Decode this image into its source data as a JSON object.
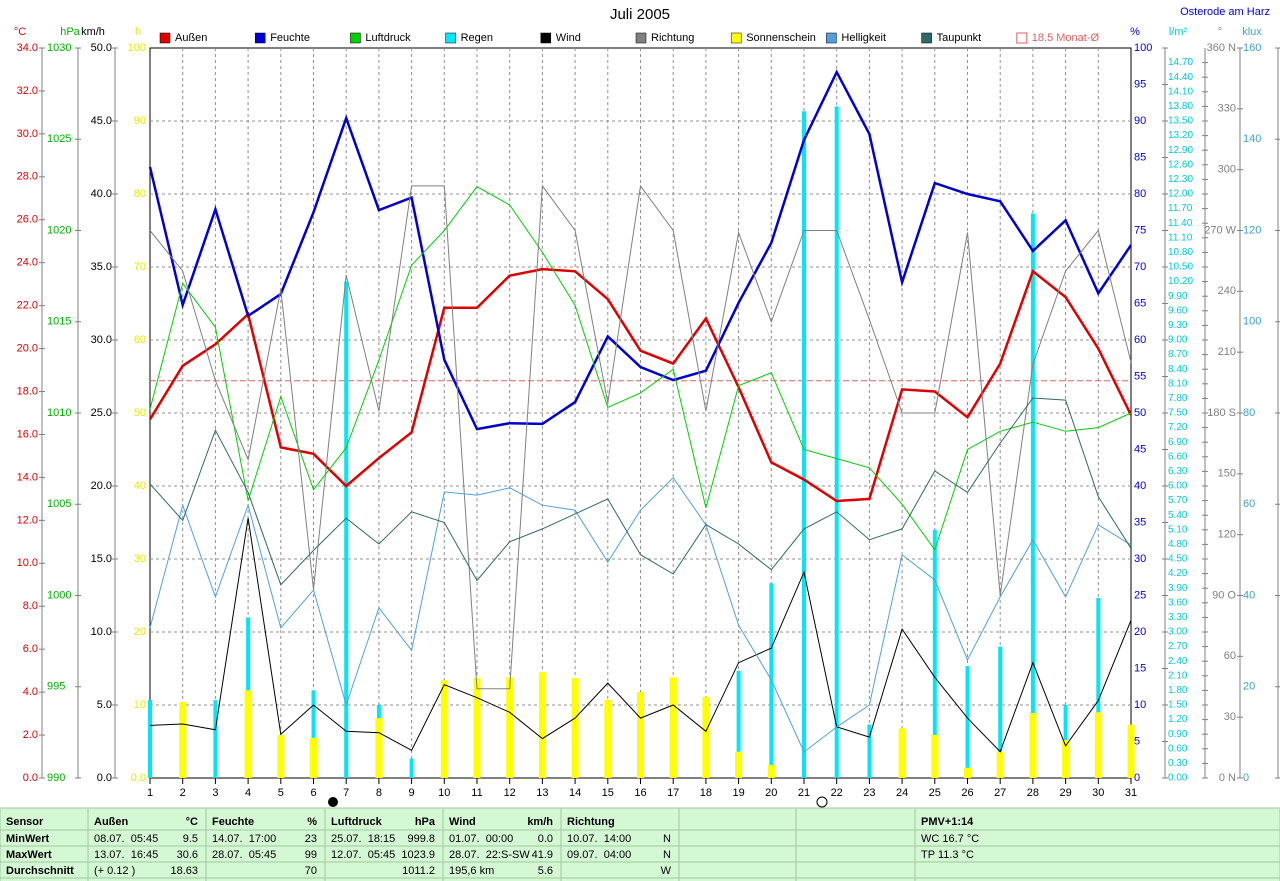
{
  "header": {
    "title": "Juli 2005",
    "location": "Osterode am Harz"
  },
  "chart_data": {
    "type": "line",
    "categories": [
      "1",
      "2",
      "3",
      "4",
      "5",
      "6",
      "7",
      "8",
      "9",
      "10",
      "11",
      "12",
      "13",
      "14",
      "15",
      "16",
      "17",
      "18",
      "19",
      "20",
      "21",
      "22",
      "23",
      "24",
      "25",
      "26",
      "27",
      "28",
      "29",
      "30",
      "31"
    ],
    "axes": [
      {
        "unit": "°C",
        "color": "#e00000",
        "lim": [
          0,
          34
        ],
        "ticks": [
          {
            "value": 0,
            "label": "0.0"
          },
          {
            "value": 2,
            "label": "2.0"
          },
          {
            "value": 4,
            "label": "4.0"
          },
          {
            "value": 6,
            "label": "6.0"
          },
          {
            "value": 8,
            "label": "8.0"
          },
          {
            "value": 10,
            "label": "10.0"
          },
          {
            "value": 12,
            "label": "12.0"
          },
          {
            "value": 14,
            "label": "14.0"
          },
          {
            "value": 16,
            "label": "16.0"
          },
          {
            "value": 18,
            "label": "18.0"
          },
          {
            "value": 20,
            "label": "20.0"
          },
          {
            "value": 22,
            "label": "22.0"
          },
          {
            "value": 24,
            "label": "24.0"
          },
          {
            "value": 26,
            "label": "26.0"
          },
          {
            "value": 28,
            "label": "28.0"
          },
          {
            "value": 30,
            "label": "30.0"
          },
          {
            "value": 32,
            "label": "32.0"
          },
          {
            "value": 34,
            "label": "34.0"
          }
        ]
      },
      {
        "unit": "hPa",
        "color": "#00b000",
        "lim": [
          990,
          1030
        ],
        "ticks": [
          990,
          995,
          1000,
          1005,
          1010,
          1015,
          1020,
          1025,
          1030
        ]
      },
      {
        "unit": "km/h",
        "color": "#000000",
        "lim": [
          0,
          50
        ],
        "grid": true,
        "ticks": [
          {
            "value": 0,
            "label": "0.0"
          },
          {
            "value": 5,
            "label": "5.0"
          },
          {
            "value": 10,
            "label": "10.0"
          },
          {
            "value": 15,
            "label": "15.0"
          },
          {
            "value": 20,
            "label": "20.0"
          },
          {
            "value": 25,
            "label": "25.0"
          },
          {
            "value": 30,
            "label": "30.0"
          },
          {
            "value": 35,
            "label": "35.0"
          },
          {
            "value": 40,
            "label": "40.0"
          },
          {
            "value": 45,
            "label": "45.0"
          },
          {
            "value": 50,
            "label": "50.0"
          }
        ]
      },
      {
        "unit": "h",
        "color": "#e8e800",
        "lim": [
          0,
          100
        ],
        "ticks": [
          {
            "value": 0,
            "label": "0.0"
          },
          10,
          20,
          30,
          40,
          50,
          60,
          70,
          80,
          90,
          100
        ]
      },
      {
        "unit": "%",
        "color": "#0000e0",
        "lim": [
          0,
          100
        ],
        "ticks": [
          0,
          5,
          10,
          15,
          20,
          25,
          30,
          35,
          40,
          45,
          50,
          55,
          60,
          65,
          70,
          75,
          80,
          85,
          90,
          95,
          100
        ]
      },
      {
        "unit": "l/m²",
        "color": "#00c8d8",
        "lim": [
          0,
          15
        ],
        "ticks": [
          {
            "value": 0,
            "label": "0.00"
          },
          {
            "value": 0.3,
            "label": "0.30"
          },
          {
            "value": 0.6,
            "label": "0.60"
          },
          {
            "value": 0.9,
            "label": "0.90"
          },
          {
            "value": 1.2,
            "label": "1.20"
          },
          {
            "value": 1.5,
            "label": "1.50"
          },
          {
            "value": 1.8,
            "label": "1.80"
          },
          {
            "value": 2.1,
            "label": "2.10"
          },
          {
            "value": 2.4,
            "label": "2.40"
          },
          {
            "value": 2.7,
            "label": "2.70"
          },
          {
            "value": 3,
            "label": "3.00"
          },
          {
            "value": 3.3,
            "label": "3.30"
          },
          {
            "value": 3.6,
            "label": "3.60"
          },
          {
            "value": 3.9,
            "label": "3.90"
          },
          {
            "value": 4.2,
            "label": "4.20"
          },
          {
            "value": 4.5,
            "label": "4.50"
          },
          {
            "value": 4.8,
            "label": "4.80"
          },
          {
            "value": 5.1,
            "label": "5.10"
          },
          {
            "value": 5.4,
            "label": "5.40"
          },
          {
            "value": 5.7,
            "label": "5.70"
          },
          {
            "value": 6,
            "label": "6.00"
          },
          {
            "value": 6.3,
            "label": "6.30"
          },
          {
            "value": 6.6,
            "label": "6.60"
          },
          {
            "value": 6.9,
            "label": "6.90"
          },
          {
            "value": 7.2,
            "label": "7.20"
          },
          {
            "value": 7.5,
            "label": "7.50"
          },
          {
            "value": 7.8,
            "label": "7.80"
          },
          {
            "value": 8.1,
            "label": "8.10"
          },
          {
            "value": 8.4,
            "label": "8.40"
          },
          {
            "value": 8.7,
            "label": "8.70"
          },
          {
            "value": 9,
            "label": "9.00"
          },
          {
            "value": 9.3,
            "label": "9.30"
          },
          {
            "value": 9.6,
            "label": "9.60"
          },
          {
            "value": 9.9,
            "label": "9.90"
          },
          {
            "value": 10.2,
            "label": "10.20"
          },
          {
            "value": 10.5,
            "label": "10.50"
          },
          {
            "value": 10.8,
            "label": "10.80"
          },
          {
            "value": 11.1,
            "label": "11.10"
          },
          {
            "value": 11.4,
            "label": "11.40"
          },
          {
            "value": 11.7,
            "label": "11.70"
          },
          {
            "value": 12,
            "label": "12.00"
          },
          {
            "value": 12.3,
            "label": "12.30"
          },
          {
            "value": 12.6,
            "label": "12.60"
          },
          {
            "value": 12.9,
            "label": "12.90"
          },
          {
            "value": 13.2,
            "label": "13.20"
          },
          {
            "value": 13.5,
            "label": "13.50"
          },
          {
            "value": 13.8,
            "label": "13.80"
          },
          {
            "value": 14.1,
            "label": "14.10"
          },
          {
            "value": 14.4,
            "label": "14.40"
          },
          {
            "value": 14.7,
            "label": "14.70"
          }
        ]
      },
      {
        "unit": "°",
        "color": "#808080",
        "lim": [
          0,
          360
        ],
        "ticks": [
          {
            "value": 0,
            "label": "0 N"
          },
          30,
          60,
          {
            "value": 90,
            "label": "90 O"
          },
          120,
          150,
          {
            "value": 180,
            "label": "180 S"
          },
          210,
          240,
          {
            "value": 270,
            "label": "270 W"
          },
          300,
          330,
          {
            "value": 360,
            "label": "360 N"
          }
        ]
      },
      {
        "unit": "klux",
        "color": "#40a0d0",
        "lim": [
          0,
          160
        ],
        "ticks": [
          0,
          20,
          40,
          60,
          80,
          100,
          120,
          140,
          160
        ]
      }
    ],
    "series": [
      {
        "name": "Außen",
        "color": "#e00000",
        "type": "line",
        "axis": 0,
        "values": [
          16.7,
          19.2,
          20.2,
          21.6,
          15.4,
          15.1,
          13.6,
          14.9,
          16.1,
          21.9,
          21.9,
          23.4,
          23.7,
          23.6,
          22.3,
          19.9,
          19.3,
          21.4,
          18.2,
          14.7,
          13.9,
          12.9,
          13.0,
          18.1,
          18.0,
          16.8,
          19.3,
          23.6,
          22.4,
          20.0,
          16.9
        ]
      },
      {
        "name": "Feuchte",
        "color": "#0000d0",
        "type": "line",
        "axis": 4,
        "values": [
          83.7,
          64.8,
          77.9,
          63.3,
          66.3,
          77.5,
          90.4,
          77.8,
          79.5,
          57.3,
          47.8,
          48.6,
          48.5,
          51.5,
          60.5,
          56.3,
          54.5,
          55.8,
          65.1,
          73.3,
          87.4,
          96.7,
          88.2,
          67.9,
          81.5,
          80,
          79,
          72.2,
          76.4,
          66.4,
          73
        ]
      },
      {
        "name": "Luftdruck",
        "color": "#00d000",
        "type": "line",
        "axis": 1,
        "values": [
          1010.2,
          1017.1,
          1014.7,
          1005.2,
          1010.9,
          1005.8,
          1008.1,
          1012.9,
          1018.1,
          1020.0,
          1022.4,
          1021.4,
          1018.8,
          1015.9,
          1010.3,
          1011.1,
          1012.4,
          1004.8,
          1011.5,
          1012.2,
          1008.0,
          1007.5,
          1007.0,
          1005.0,
          1002.5,
          1008.0,
          1009.0,
          1009.5,
          1009.0,
          1009.2,
          1010.0
        ]
      },
      {
        "name": "Regen",
        "color": "#00e8f8",
        "type": "bar",
        "axis": 5,
        "values": [
          1.6,
          1.5,
          1.6,
          3.3,
          0.3,
          1.8,
          10.2,
          1.5,
          0.4,
          0.1,
          0,
          0,
          0,
          0,
          0.3,
          0,
          0,
          0.2,
          2.2,
          4.0,
          13.7,
          13.8,
          1.1,
          0,
          5.1,
          2.3,
          2.7,
          11.6,
          1.5,
          3.7,
          0
        ]
      },
      {
        "name": "Wind",
        "color": "#000000",
        "type": "line",
        "axis": 2,
        "values": [
          3.6,
          3.7,
          3.3,
          17.8,
          3.0,
          5.0,
          3.2,
          3.1,
          1.9,
          6.4,
          5.5,
          4.5,
          2.7,
          4.1,
          6.5,
          4.1,
          5.0,
          3.2,
          7.9,
          8.9,
          14.1,
          3.5,
          2.8,
          10.2,
          6.9,
          4.1,
          1.8,
          7.9,
          2.2,
          5.3,
          10.8
        ]
      },
      {
        "name": "Richtung",
        "color": "#808080",
        "type": "line",
        "axis": 6,
        "values": [
          270,
          250,
          196,
          157,
          241,
          93,
          248,
          181,
          292,
          292,
          44,
          44,
          292,
          270,
          185,
          292,
          270,
          181,
          269,
          225,
          270,
          270,
          226,
          180,
          180,
          269,
          90,
          204,
          250,
          270,
          205
        ]
      },
      {
        "name": "Sonnenschein",
        "color": "#ffff00",
        "type": "bar",
        "axis": 3,
        "values": [
          0,
          10.4,
          0,
          12,
          5.9,
          5.5,
          0,
          8.2,
          0,
          13.4,
          13.7,
          13.8,
          14.5,
          13.7,
          10.7,
          11.8,
          13.8,
          11.1,
          3.6,
          1.8,
          0,
          0,
          0,
          6.8,
          5.9,
          1.4,
          3.6,
          8.9,
          5.2,
          9.0,
          7.3
        ]
      },
      {
        "name": "Helligkeit",
        "color": "#50a0e0",
        "type": "line",
        "axis": 7,
        "values": [
          32.9,
          59.8,
          39.7,
          59.8,
          32.9,
          41.2,
          16,
          37.3,
          28,
          62.7,
          62,
          63.6,
          59.8,
          58.7,
          47.3,
          58.7,
          65.8,
          55.5,
          33.5,
          21.5,
          5.7,
          11.2,
          16,
          48.9,
          43.4,
          25.9,
          39.7,
          52.2,
          39.7,
          55.5,
          51.1
        ]
      },
      {
        "name": "Taupunkt",
        "color": "#306868",
        "type": "line",
        "axis": 0,
        "values": [
          13.7,
          12.0,
          16.2,
          13.3,
          9.0,
          10.6,
          12.1,
          10.9,
          12.4,
          11.9,
          9.2,
          11.0,
          11.6,
          12.3,
          13.0,
          10.4,
          9.5,
          11.8,
          10.9,
          9.7,
          11.6,
          12.4,
          11.1,
          11.6,
          14.3,
          13.3,
          15.6,
          17.7,
          17.6,
          13.1,
          10.7
        ]
      }
    ],
    "avg_line": {
      "value": 18.5,
      "label": "18.5 Monat-Ø",
      "axis": 0,
      "color": "#e06060"
    }
  },
  "table": {
    "header": [
      {
        "left": "Sensor"
      },
      {
        "left": "Außen",
        "right": "°C"
      },
      {
        "left": "Feuchte",
        "right": "%"
      },
      {
        "left": "Luftdruck",
        "right": "hPa"
      },
      {
        "left": "Wind",
        "right": "km/h"
      },
      {
        "left": "Richtung"
      },
      {},
      {},
      {
        "left": "PMV+1:14"
      }
    ],
    "rows": [
      [
        {
          "left": "MinWert"
        },
        {
          "left": "08.07.  05:45",
          "right": "9.5"
        },
        {
          "left": "14.07.  17:00",
          "right": "23"
        },
        {
          "left": "25.07.  18:15",
          "right": "999.8"
        },
        {
          "left": "01.07.  00:00",
          "right": "0.0"
        },
        {
          "left": "10.07.  14:00",
          "right": "N"
        },
        {},
        {},
        {
          "left": "WC 16.7 °C"
        }
      ],
      [
        {
          "left": "MaxWert"
        },
        {
          "left": "13.07.  16:45",
          "right": "30.6"
        },
        {
          "left": "28.07.  05:45",
          "right": "99"
        },
        {
          "left": "12.07.  05:45",
          "right": "1023.9"
        },
        {
          "left": "28.07.  22:S-SW",
          "right": "41.9"
        },
        {
          "left": "09.07.  04:00",
          "right": "N"
        },
        {},
        {},
        {
          "left": "TP 11.3 °C"
        }
      ],
      [
        {
          "left": "Durchschnitt"
        },
        {
          "left": "(+ 0.12 )",
          "right": "18.63"
        },
        {
          "right": "70"
        },
        {
          "right": "1011.2"
        },
        {
          "left": "195,6 km",
          "right": "5.6"
        },
        {
          "right": "W"
        },
        {},
        {},
        {}
      ]
    ]
  }
}
